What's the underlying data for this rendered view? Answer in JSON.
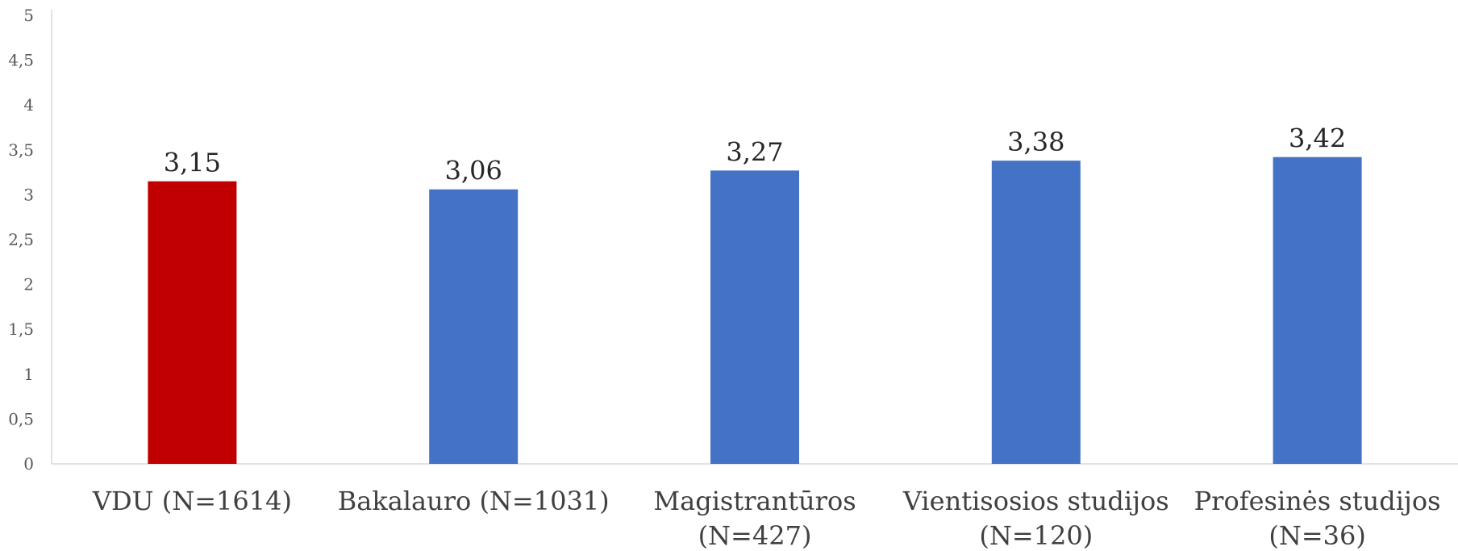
{
  "chart_data": {
    "type": "bar",
    "categories": [
      [
        "VDU (N=1614)"
      ],
      [
        "Bakalauro (N=1031)"
      ],
      [
        "Magistrantūros",
        "(N=427)"
      ],
      [
        "Vientisosios studijos",
        "(N=120)"
      ],
      [
        "Profesinės studijos",
        "(N=36)"
      ]
    ],
    "values": [
      3.15,
      3.06,
      3.27,
      3.38,
      3.42
    ],
    "data_labels": [
      "3,15",
      "3,06",
      "3,27",
      "3,38",
      "3,42"
    ],
    "bar_colors": [
      "#C00000",
      "#4472C4",
      "#4472C4",
      "#4472C4",
      "#4472C4"
    ],
    "ylim": [
      0,
      5
    ],
    "yticks": [
      0,
      0.5,
      1,
      1.5,
      2,
      2.5,
      3,
      3.5,
      4,
      4.5,
      5
    ],
    "ytick_labels": [
      "0",
      "0,5",
      "1",
      "1,5",
      "2",
      "2,5",
      "3",
      "3,5",
      "4",
      "4,5",
      "5"
    ],
    "grid": false,
    "title": "",
    "xlabel": "",
    "ylabel": ""
  }
}
